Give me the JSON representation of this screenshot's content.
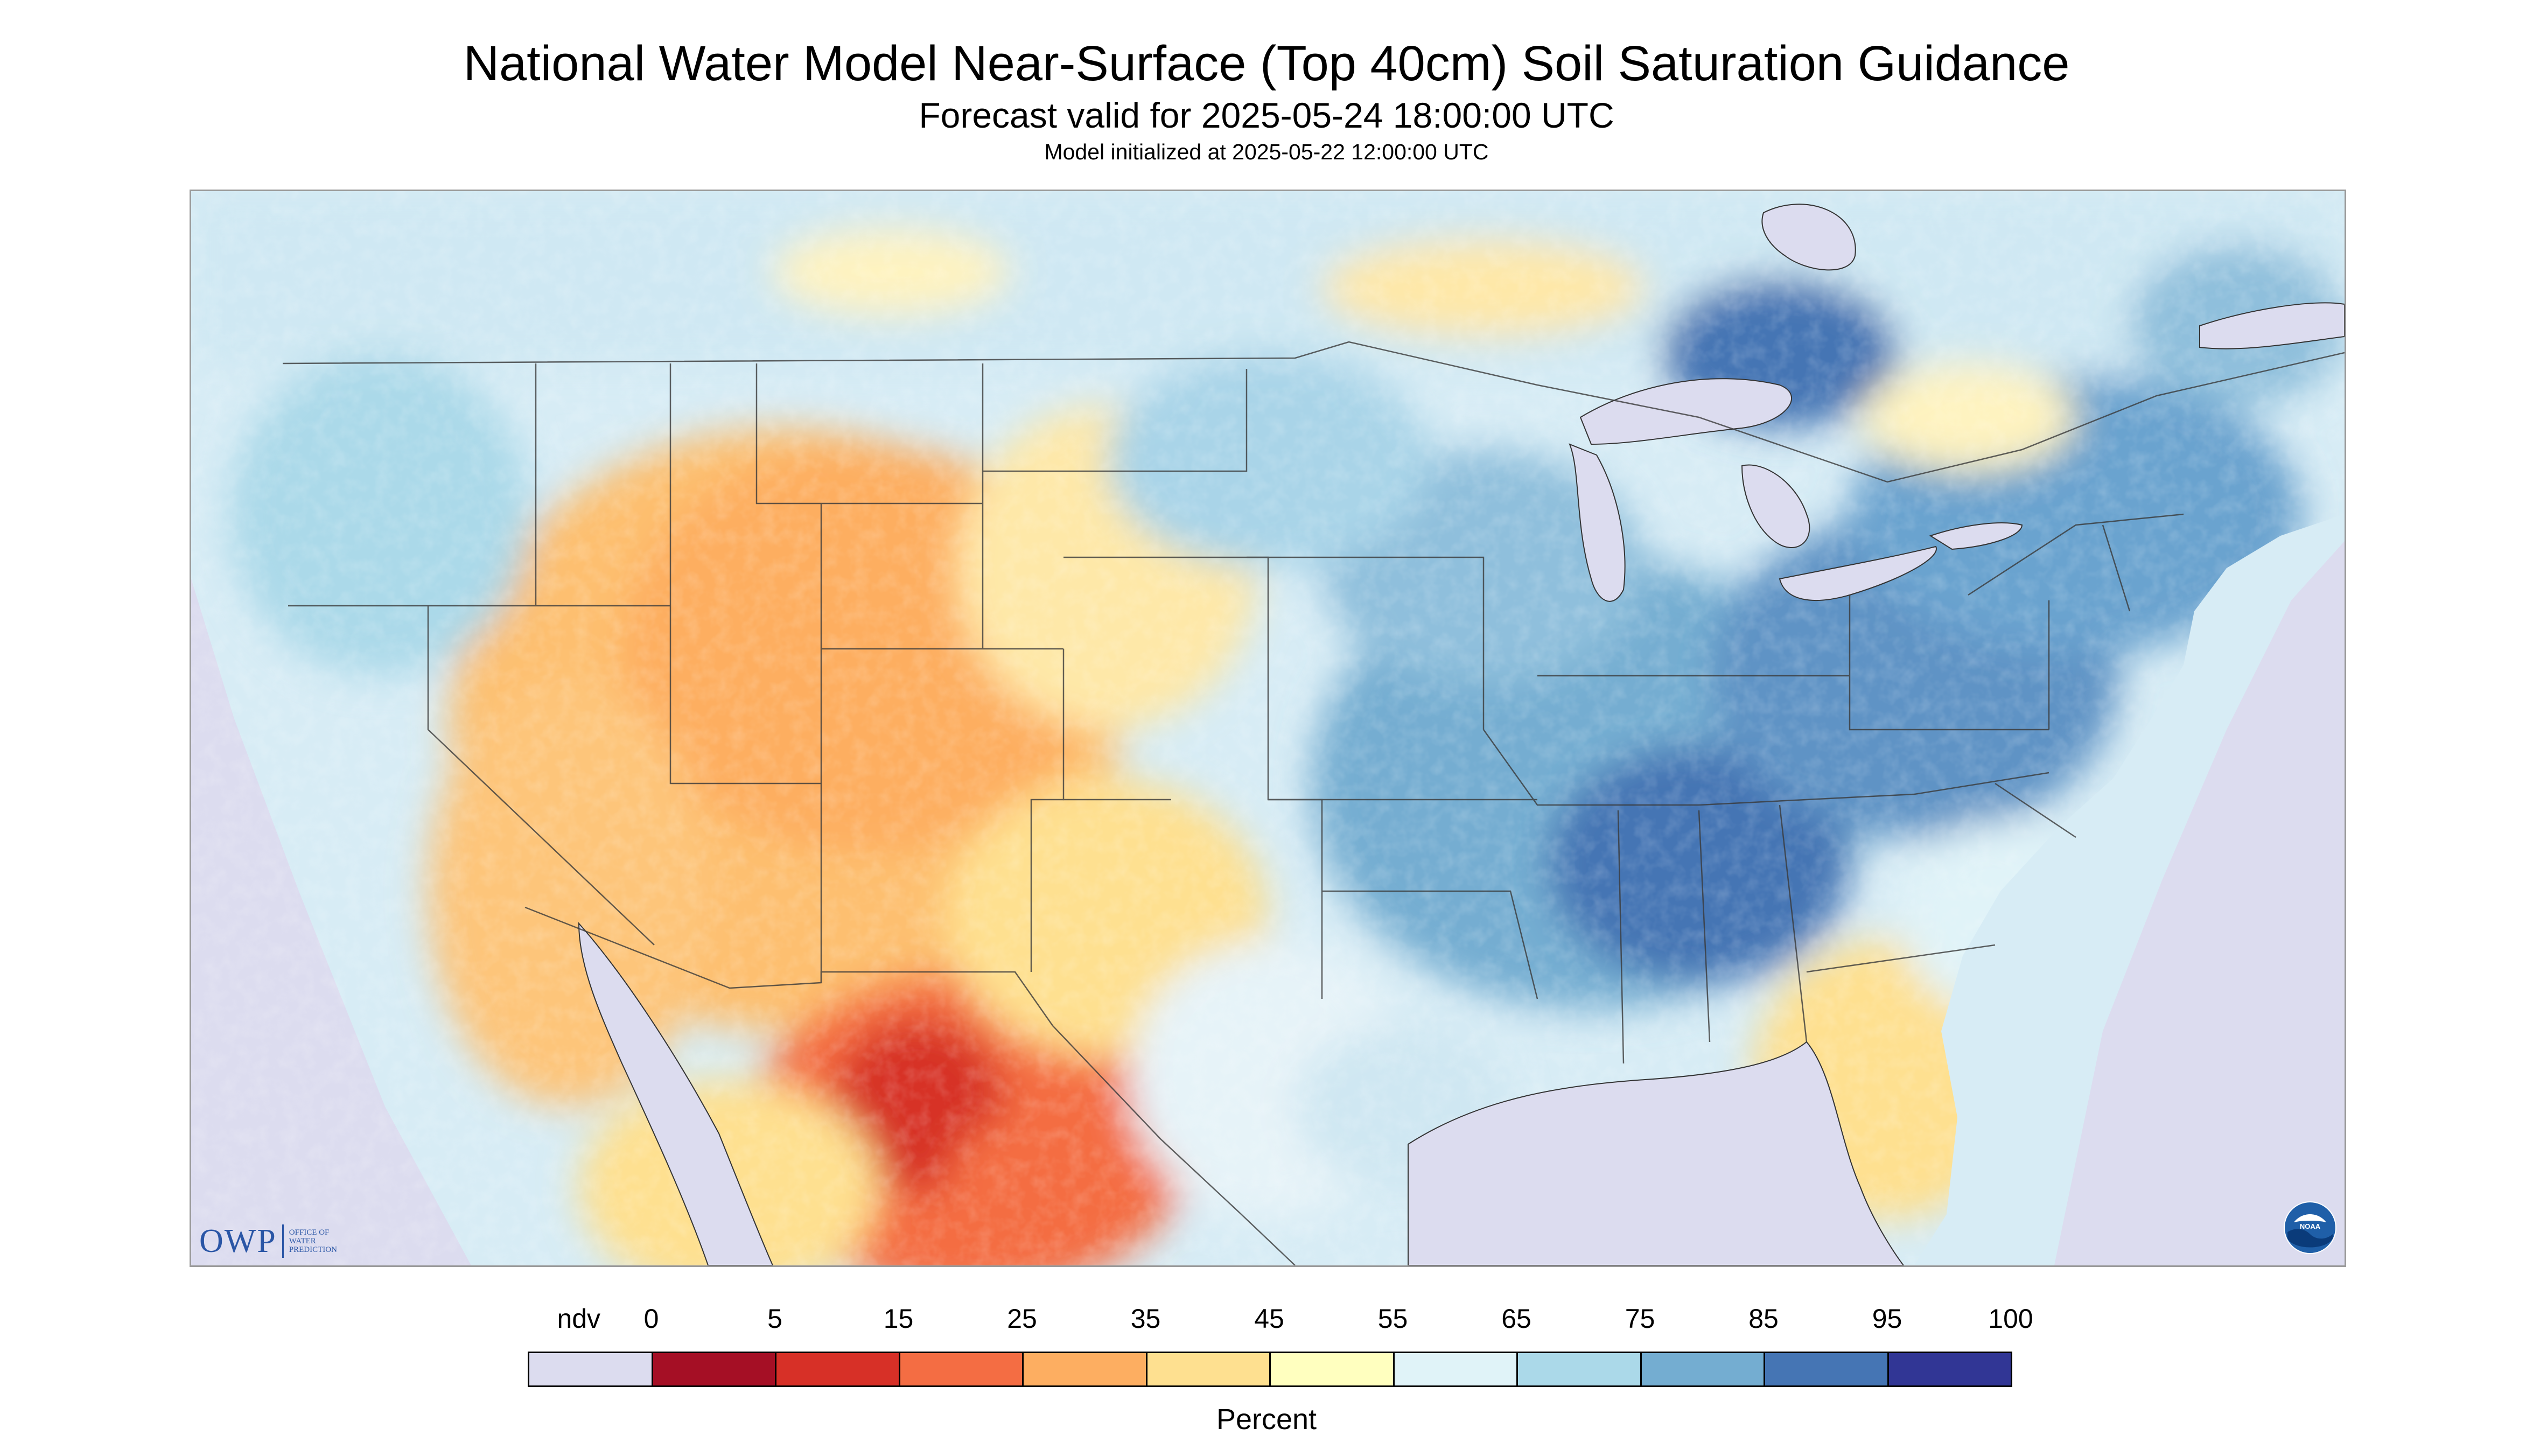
{
  "title": "National Water Model Near-Surface (Top 40cm) Soil Saturation Guidance",
  "subtitle": "Forecast valid for 2025-05-24 18:00:00 UTC",
  "init_line": "Model initialized at 2025-05-22 12:00:00 UTC",
  "logos": {
    "owp_text": "OWP",
    "owp_sub": [
      "OFFICE OF",
      "WATER",
      "PREDICTION"
    ],
    "noaa_text": "NOAA"
  },
  "legend": {
    "units": "Percent",
    "ndv_label": "ndv",
    "ticks": [
      "0",
      "5",
      "15",
      "25",
      "35",
      "45",
      "55",
      "65",
      "75",
      "85",
      "95",
      "100"
    ],
    "colors": [
      "#dcdcef",
      "#a50f25",
      "#d73027",
      "#f46d43",
      "#fdae61",
      "#fee090",
      "#ffffbf",
      "#e0f3f8",
      "#abd9e9",
      "#74add1",
      "#4575b4",
      "#313695"
    ]
  },
  "map_colors": {
    "nodata": "#dcdcef",
    "canada_base": "#cfe7f2",
    "borders": "#3a3a3a"
  }
}
